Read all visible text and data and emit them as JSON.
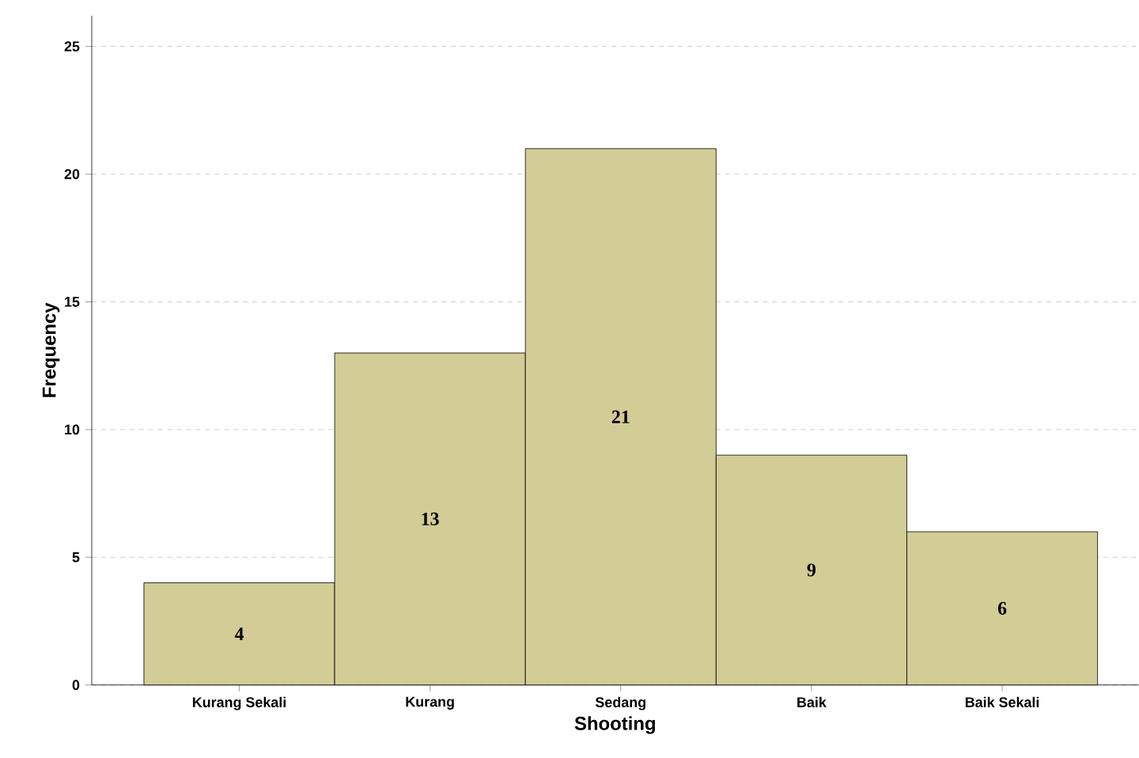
{
  "chart_data": {
    "type": "bar",
    "xlabel": "Shooting",
    "ylabel": "Frequency",
    "categories": [
      "Kurang Sekali",
      "Kurang",
      "Sedang",
      "Baik",
      "Baik Sekali"
    ],
    "values": [
      4,
      13,
      21,
      9,
      6
    ],
    "color": "#d2cc96",
    "ylim": [
      0,
      26.2
    ],
    "yticks": [
      0,
      5,
      10,
      15,
      20,
      25
    ],
    "grid": "y",
    "data_labels": true
  }
}
